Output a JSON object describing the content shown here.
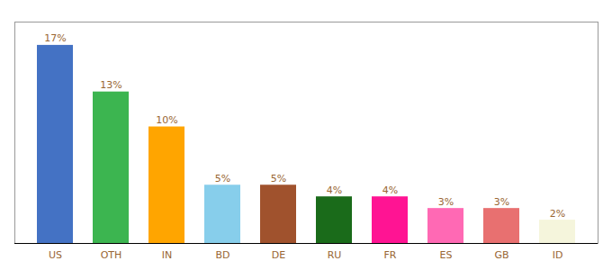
{
  "chart_data": {
    "type": "bar",
    "categories": [
      "US",
      "OTH",
      "IN",
      "BD",
      "DE",
      "RU",
      "FR",
      "ES",
      "GB",
      "ID"
    ],
    "values": [
      17,
      13,
      10,
      5,
      5,
      4,
      4,
      3,
      3,
      2
    ],
    "value_labels": [
      "17%",
      "13%",
      "10%",
      "5%",
      "5%",
      "4%",
      "4%",
      "3%",
      "3%",
      "2%"
    ],
    "colors": [
      "#4472c4",
      "#3cb550",
      "#ffa500",
      "#87ceeb",
      "#a0522d",
      "#1a6b1a",
      "#ff1493",
      "#ff69b4",
      "#e87070",
      "#f5f5dc"
    ],
    "ylim": [
      0,
      19
    ],
    "data_labels": true,
    "tick_labels": "x",
    "grid": false
  }
}
